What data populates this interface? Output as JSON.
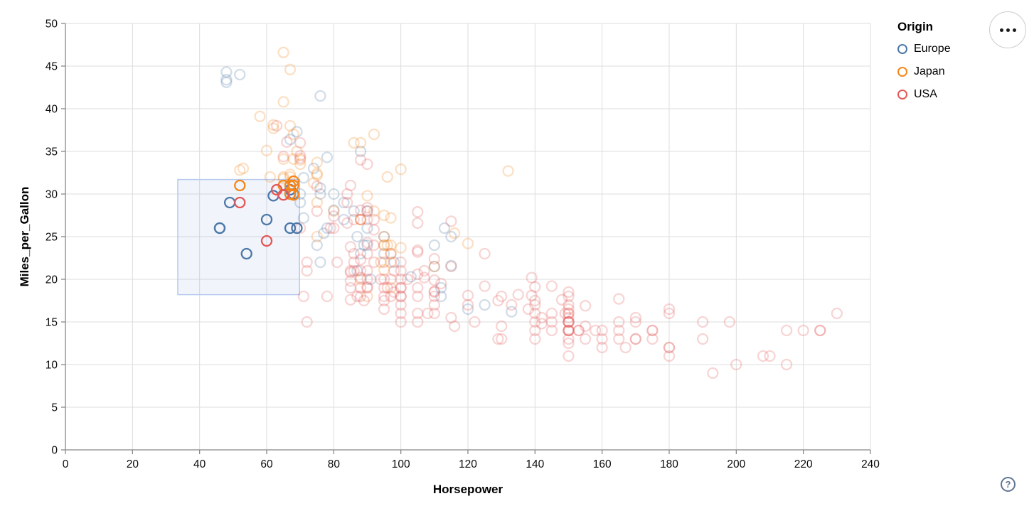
{
  "chart_data": {
    "type": "scatter",
    "title": "",
    "xlabel": "Horsepower",
    "ylabel": "Miles_per_Gallon",
    "xlim": [
      0,
      240
    ],
    "ylim": [
      0,
      50
    ],
    "x_ticks": [
      0,
      20,
      40,
      60,
      80,
      100,
      120,
      140,
      160,
      180,
      200,
      220,
      240
    ],
    "y_ticks": [
      0,
      5,
      10,
      15,
      20,
      25,
      30,
      35,
      40,
      45,
      50
    ],
    "grid": true,
    "legend": {
      "title": "Origin",
      "position": "top-right",
      "entries": [
        {
          "label": "Europe",
          "color": "#4c78a8"
        },
        {
          "label": "Japan",
          "color": "#f58518"
        },
        {
          "label": "USA",
          "color": "#e45756"
        }
      ]
    },
    "marker": {
      "shape": "open-circle",
      "radius": 7,
      "stroke_width": 2.3
    },
    "brush": {
      "x_range": [
        33.5,
        69.8
      ],
      "y_range": [
        18.2,
        31.7
      ],
      "fill": "rgba(120,155,220,0.10)",
      "stroke": "#b7c9ef"
    },
    "selected_opacity": 1.0,
    "unselected_opacity": 0.25,
    "series": [
      {
        "name": "Europe",
        "color": "#4c78a8",
        "points": [
          [
            46,
            26
          ],
          [
            87,
            25
          ],
          [
            90,
            24
          ],
          [
            95,
            25
          ],
          [
            113,
            26
          ],
          [
            90,
            28
          ],
          [
            70,
            30
          ],
          [
            76,
            30
          ],
          [
            60,
            27
          ],
          [
            54,
            23
          ],
          [
            76,
            22
          ],
          [
            87,
            21
          ],
          [
            69,
            26
          ],
          [
            112,
            18
          ],
          [
            90,
            26
          ],
          [
            49,
            29
          ],
          [
            75,
            24
          ],
          [
            91,
            20
          ],
          [
            112,
            19
          ],
          [
            110,
            24
          ],
          [
            46,
            26
          ],
          [
            83,
            29
          ],
          [
            67,
            26
          ],
          [
            78,
            26
          ],
          [
            70,
            29
          ],
          [
            115,
            25
          ],
          [
            98,
            22
          ],
          [
            88,
            23
          ],
          [
            133,
            16.2
          ],
          [
            120,
            16.5
          ],
          [
            48,
            43.4
          ],
          [
            48,
            44.3
          ],
          [
            48,
            43.1
          ],
          [
            52,
            44
          ],
          [
            76,
            41.5
          ],
          [
            67,
            36.4
          ],
          [
            67,
            30
          ],
          [
            62,
            29.8
          ],
          [
            67,
            30.5
          ],
          [
            68,
            30
          ],
          [
            80,
            28.1
          ],
          [
            76,
            30.7
          ],
          [
            74,
            33
          ],
          [
            83,
            27
          ],
          [
            78,
            34.3
          ],
          [
            103,
            20.3
          ],
          [
            77,
            25.4
          ],
          [
            110,
            21.5
          ],
          [
            125,
            17
          ],
          [
            71,
            27.2
          ],
          [
            115,
            21.6
          ],
          [
            80,
            30
          ],
          [
            69,
            37.3
          ],
          [
            71,
            31.9
          ],
          [
            88,
            35
          ],
          [
            86,
            28
          ],
          [
            95,
            23
          ],
          [
            89,
            24
          ]
        ]
      },
      {
        "name": "Japan",
        "color": "#f58518",
        "points": [
          [
            95,
            24
          ],
          [
            88,
            27
          ],
          [
            88,
            27
          ],
          [
            95,
            25
          ],
          [
            65,
            31
          ],
          [
            69,
            35
          ],
          [
            95,
            24
          ],
          [
            88,
            20
          ],
          [
            94,
            22
          ],
          [
            90,
            18
          ],
          [
            97,
            19
          ],
          [
            92,
            28
          ],
          [
            80,
            28
          ],
          [
            67,
            31
          ],
          [
            65,
            32
          ],
          [
            75,
            25
          ],
          [
            52,
            31
          ],
          [
            61,
            32
          ],
          [
            97,
            24
          ],
          [
            96,
            24
          ],
          [
            53,
            33
          ],
          [
            75,
            29
          ],
          [
            52,
            32.8
          ],
          [
            97,
            23
          ],
          [
            68,
            31.5
          ],
          [
            67,
            30
          ],
          [
            70,
            33.5
          ],
          [
            95,
            21.1
          ],
          [
            97,
            22
          ],
          [
            110,
            21.5
          ],
          [
            95,
            27.5
          ],
          [
            97,
            27.2
          ],
          [
            65,
            34.1
          ],
          [
            68,
            29.9
          ],
          [
            65,
            31.8
          ],
          [
            58,
            39.1
          ],
          [
            60,
            35.1
          ],
          [
            67,
            32.3
          ],
          [
            65,
            40.8
          ],
          [
            65,
            46.6
          ],
          [
            67,
            44.6
          ],
          [
            132,
            32.7
          ],
          [
            100,
            23.7
          ],
          [
            62,
            38.1
          ],
          [
            92,
            37
          ],
          [
            75,
            32.2
          ],
          [
            74,
            31.3
          ],
          [
            75,
            33.7
          ],
          [
            75,
            32.4
          ],
          [
            100,
            32.9
          ],
          [
            68,
            34.1
          ],
          [
            88,
            36
          ],
          [
            86,
            36
          ],
          [
            67,
            38
          ],
          [
            67,
            32
          ],
          [
            68,
            37
          ],
          [
            68,
            31
          ],
          [
            70,
            34
          ],
          [
            120,
            24.2
          ],
          [
            116,
            25.4
          ],
          [
            90,
            29.8
          ],
          [
            62,
            37.7
          ],
          [
            96,
            32
          ]
        ]
      },
      {
        "name": "USA",
        "color": "#e45756",
        "points": [
          [
            130,
            18
          ],
          [
            165,
            15
          ],
          [
            150,
            18
          ],
          [
            150,
            16
          ],
          [
            140,
            17
          ],
          [
            198,
            15
          ],
          [
            220,
            14
          ],
          [
            215,
            14
          ],
          [
            225,
            14
          ],
          [
            190,
            15
          ],
          [
            170,
            15
          ],
          [
            160,
            14
          ],
          [
            150,
            15
          ],
          [
            225,
            14
          ],
          [
            95,
            22
          ],
          [
            97,
            18
          ],
          [
            85,
            21
          ],
          [
            90,
            21
          ],
          [
            215,
            10
          ],
          [
            200,
            10
          ],
          [
            210,
            11
          ],
          [
            193,
            9
          ],
          [
            90,
            28
          ],
          [
            105,
            16
          ],
          [
            100,
            17
          ],
          [
            88,
            19
          ],
          [
            100,
            18
          ],
          [
            165,
            14
          ],
          [
            175,
            14
          ],
          [
            153,
            14
          ],
          [
            150,
            14
          ],
          [
            180,
            12
          ],
          [
            170,
            13
          ],
          [
            175,
            13
          ],
          [
            110,
            18
          ],
          [
            72,
            22
          ],
          [
            100,
            19
          ],
          [
            88,
            18
          ],
          [
            86,
            23
          ],
          [
            70,
            26
          ],
          [
            90,
            20
          ],
          [
            86,
            21
          ],
          [
            165,
            13
          ],
          [
            175,
            14
          ],
          [
            150,
            15
          ],
          [
            153,
            14
          ],
          [
            150,
            17
          ],
          [
            208,
            11
          ],
          [
            155,
            13
          ],
          [
            160,
            12
          ],
          [
            190,
            13
          ],
          [
            150,
            15
          ],
          [
            130,
            13
          ],
          [
            140,
            13
          ],
          [
            150,
            14
          ],
          [
            86,
            22
          ],
          [
            97,
            23
          ],
          [
            150,
            11
          ],
          [
            167,
            12
          ],
          [
            170,
            13
          ],
          [
            180,
            12
          ],
          [
            100,
            18
          ],
          [
            72,
            21
          ],
          [
            85,
            19
          ],
          [
            107,
            21
          ],
          [
            145,
            15
          ],
          [
            230,
            16
          ],
          [
            150,
            15
          ],
          [
            180,
            11
          ],
          [
            95,
            20
          ],
          [
            100,
            19
          ],
          [
            100,
            15
          ],
          [
            80,
            26
          ],
          [
            100,
            16
          ],
          [
            110,
            16
          ],
          [
            105,
            18
          ],
          [
            140,
            16
          ],
          [
            150,
            13
          ],
          [
            150,
            14
          ],
          [
            140,
            14
          ],
          [
            150,
            14
          ],
          [
            75,
            28
          ],
          [
            95,
            19
          ],
          [
            72,
            15
          ],
          [
            90,
            19
          ],
          [
            78,
            18
          ],
          [
            110,
            18.5
          ],
          [
            95,
            17.5
          ],
          [
            52,
            29
          ],
          [
            98,
            18.5
          ],
          [
            180,
            16
          ],
          [
            170,
            15.5
          ],
          [
            150,
            15.5
          ],
          [
            148,
            17.6
          ],
          [
            138,
            16.5
          ],
          [
            135,
            18.2
          ],
          [
            155,
            16.9
          ],
          [
            142,
            15.5
          ],
          [
            125,
            19.2
          ],
          [
            150,
            18.5
          ],
          [
            105,
            20.6
          ],
          [
            85,
            20.8
          ],
          [
            110,
            18.6
          ],
          [
            120,
            18.1
          ],
          [
            145,
            19.2
          ],
          [
            165,
            17.7
          ],
          [
            139,
            18.1
          ],
          [
            140,
            17.5
          ],
          [
            75,
            30.9
          ],
          [
            70,
            34.2
          ],
          [
            70,
            34.5
          ],
          [
            66,
            36.1
          ],
          [
            115,
            26.8
          ],
          [
            90,
            33.5
          ],
          [
            90,
            28.4
          ],
          [
            88,
            22.3
          ],
          [
            90,
            24.3
          ],
          [
            105,
            27.9
          ],
          [
            105,
            23.2
          ],
          [
            85,
            23.8
          ],
          [
            180,
            16.5
          ],
          [
            110,
            19.9
          ],
          [
            105,
            23.4
          ],
          [
            133,
            17
          ],
          [
            125,
            23
          ],
          [
            129,
            17.5
          ],
          [
            140,
            19.1
          ],
          [
            139,
            20.2
          ],
          [
            115,
            21.5
          ],
          [
            129,
            13
          ],
          [
            88,
            28.1
          ],
          [
            88,
            27
          ],
          [
            88,
            34
          ],
          [
            85,
            31
          ],
          [
            84,
            29
          ],
          [
            92,
            24
          ],
          [
            110,
            22.4
          ],
          [
            105,
            26.6
          ],
          [
            88,
            20.2
          ],
          [
            85,
            17.6
          ],
          [
            65,
            34.4
          ],
          [
            65,
            29.9
          ],
          [
            70,
            36
          ],
          [
            84,
            26.6
          ],
          [
            92,
            25.8
          ],
          [
            84,
            30
          ],
          [
            92,
            27
          ],
          [
            90,
            19.1
          ],
          [
            86,
            27
          ],
          [
            90,
            27
          ],
          [
            63,
            38
          ],
          [
            85,
            19.8
          ],
          [
            80,
            27.4
          ],
          [
            60,
            24.5
          ],
          [
            63,
            30.5
          ],
          [
            100,
            20
          ],
          [
            95,
            18
          ],
          [
            105,
            19
          ],
          [
            120,
            17
          ],
          [
            97,
            20
          ],
          [
            90,
            23
          ],
          [
            88,
            21
          ],
          [
            102,
            20
          ],
          [
            107,
            20.2
          ],
          [
            110,
            17
          ],
          [
            115,
            15.5
          ],
          [
            96,
            19
          ],
          [
            100,
            22
          ],
          [
            98,
            21
          ],
          [
            95,
            16.5
          ],
          [
            130,
            14.5
          ],
          [
            112,
            19.5
          ],
          [
            81,
            22
          ],
          [
            79,
            26
          ],
          [
            71,
            18
          ],
          [
            150,
            16.5
          ],
          [
            145,
            14
          ],
          [
            155,
            14.5
          ],
          [
            150,
            16
          ],
          [
            140,
            15
          ],
          [
            158,
            14
          ],
          [
            145,
            16
          ],
          [
            150,
            12.5
          ],
          [
            160,
            13
          ],
          [
            149,
            16
          ],
          [
            142,
            14.8
          ],
          [
            100,
            21
          ],
          [
            92,
            22
          ],
          [
            87,
            18
          ],
          [
            94,
            20
          ],
          [
            89,
            17.5
          ],
          [
            105,
            15
          ],
          [
            122,
            15
          ],
          [
            116,
            14.5
          ],
          [
            108,
            16
          ]
        ]
      }
    ],
    "layout": {
      "plot_left": 92,
      "plot_top": 33,
      "plot_right": 1224,
      "plot_bottom": 633,
      "grid_color": "#dddddd",
      "axis_color": "#888888",
      "label_color": "#0a0a0a",
      "label_font_size": 15.5,
      "title_font_size": 17
    }
  },
  "controls": {
    "menu_button_tooltip": "actions",
    "help_label": "?"
  }
}
